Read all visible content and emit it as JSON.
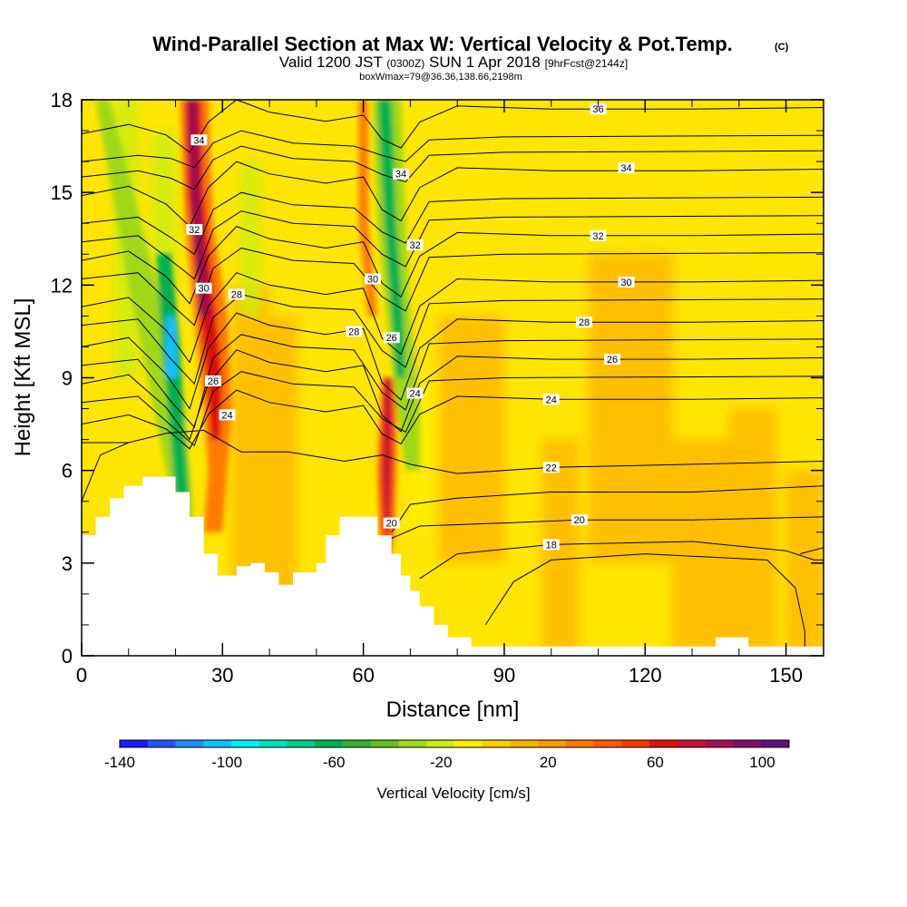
{
  "chart_data": {
    "type": "heatmap",
    "title": "Wind-Parallel Section at Max W: Vertical Velocity & Pot.Temp.",
    "title_mark": "(C)",
    "subtitle_prefix": "Valid 1200 JST",
    "subtitle_utc": "(0300Z)",
    "subtitle_date": "SUN 1 Apr 2018",
    "subtitle_fcst": "[9hrFcst@2144z]",
    "subtitle2": "boxWmax=79@36.36,138.66,2198m",
    "xlabel": "Distance [nm]",
    "ylabel": "Height [Kft MSL]",
    "xlim": [
      0,
      158
    ],
    "ylim": [
      0,
      18
    ],
    "xticks": [
      0,
      30,
      60,
      90,
      120,
      150
    ],
    "xtick_labels": [
      "0",
      "30",
      "60",
      "90",
      "120",
      "150"
    ],
    "yticks": [
      0,
      3,
      6,
      9,
      12,
      15,
      18
    ],
    "ytick_labels": [
      "0",
      "3",
      "6",
      "9",
      "12",
      "15",
      "18"
    ],
    "colorbar": {
      "label": "Vertical Velocity [cm/s]",
      "min": -140,
      "max": 110,
      "tick_values": [
        -140,
        -100,
        -60,
        -20,
        20,
        60,
        100
      ],
      "tick_labels": [
        "-140",
        "-100",
        "-60",
        "-20",
        "20",
        "60",
        "100"
      ],
      "colors": [
        "#1a1aff",
        "#1f55ff",
        "#1f8cff",
        "#14bfff",
        "#00eeff",
        "#00e0bd",
        "#00cc88",
        "#00b050",
        "#33b030",
        "#66c020",
        "#a0d818",
        "#ccee10",
        "#ffee00",
        "#fecc00",
        "#feb300",
        "#fe9800",
        "#fe7a00",
        "#fe5a00",
        "#f23a00",
        "#e01010",
        "#c81030",
        "#a01050",
        "#80106a",
        "#601080"
      ]
    },
    "features": [
      {
        "kind": "updraft",
        "peak_w": 80,
        "x": [
          23,
          29
        ],
        "y": [
          4,
          18
        ]
      },
      {
        "kind": "updraft",
        "peak_w": 70,
        "x": [
          65,
          66
        ],
        "y": [
          3.5,
          9
        ]
      },
      {
        "kind": "downdraft",
        "peak_w": -100,
        "x": [
          19,
          20
        ],
        "y": [
          6,
          12
        ]
      },
      {
        "kind": "downdraft",
        "peak_w": -60,
        "x": [
          67,
          69
        ],
        "y": [
          8,
          18
        ]
      }
    ],
    "terrain_heights_kft": [
      [
        0,
        3.9
      ],
      [
        3,
        4.5
      ],
      [
        6,
        5.1
      ],
      [
        9,
        5.5
      ],
      [
        13,
        5.8
      ],
      [
        20,
        5.3
      ],
      [
        23,
        4.5
      ],
      [
        26,
        3.3
      ],
      [
        29,
        2.6
      ],
      [
        33,
        2.9
      ],
      [
        36,
        3.0
      ],
      [
        39,
        2.7
      ],
      [
        42,
        2.3
      ],
      [
        45,
        2.7
      ],
      [
        50,
        3.0
      ],
      [
        52,
        3.9
      ],
      [
        55,
        4.5
      ],
      [
        60,
        4.5
      ],
      [
        63,
        3.9
      ],
      [
        66,
        3.3
      ],
      [
        68,
        2.6
      ],
      [
        70,
        2.1
      ],
      [
        72,
        1.6
      ],
      [
        75,
        1.0
      ],
      [
        78,
        0.6
      ],
      [
        83,
        0.3
      ],
      [
        90,
        0.3
      ],
      [
        133,
        0.3
      ],
      [
        135,
        0.6
      ],
      [
        140,
        0.6
      ],
      [
        142,
        0.3
      ],
      [
        158,
        0.3
      ]
    ],
    "theta_contours_C": [
      {
        "value": 18,
        "label_at": [
          100,
          3.6
        ]
      },
      {
        "value": 20,
        "label_at": [
          66,
          4.3
        ]
      },
      {
        "value": 20,
        "label_at": [
          106,
          4.4
        ]
      },
      {
        "value": 22,
        "label_at": [
          100,
          6.1
        ]
      },
      {
        "value": 24,
        "label_at": [
          31,
          7.8
        ]
      },
      {
        "value": 24,
        "label_at": [
          71,
          8.5
        ]
      },
      {
        "value": 24,
        "label_at": [
          100,
          8.3
        ]
      },
      {
        "value": 26,
        "label_at": [
          28,
          8.9
        ]
      },
      {
        "value": 26,
        "label_at": [
          66,
          10.3
        ]
      },
      {
        "value": 26,
        "label_at": [
          113,
          9.6
        ]
      },
      {
        "value": 28,
        "label_at": [
          58,
          10.5
        ]
      },
      {
        "value": 28,
        "label_at": [
          33,
          11.7
        ]
      },
      {
        "value": 28,
        "label_at": [
          107,
          10.8
        ]
      },
      {
        "value": 30,
        "label_at": [
          26,
          11.9
        ]
      },
      {
        "value": 30,
        "label_at": [
          62,
          12.2
        ]
      },
      {
        "value": 30,
        "label_at": [
          116,
          12.1
        ]
      },
      {
        "value": 32,
        "label_at": [
          24,
          13.8
        ]
      },
      {
        "value": 32,
        "label_at": [
          71,
          13.3
        ]
      },
      {
        "value": 32,
        "label_at": [
          110,
          13.6
        ]
      },
      {
        "value": 34,
        "label_at": [
          25,
          16.7
        ]
      },
      {
        "value": 34,
        "label_at": [
          68,
          15.6
        ]
      },
      {
        "value": 34,
        "label_at": [
          116,
          15.8
        ]
      },
      {
        "value": 36,
        "label_at": [
          110,
          17.7
        ]
      }
    ]
  }
}
